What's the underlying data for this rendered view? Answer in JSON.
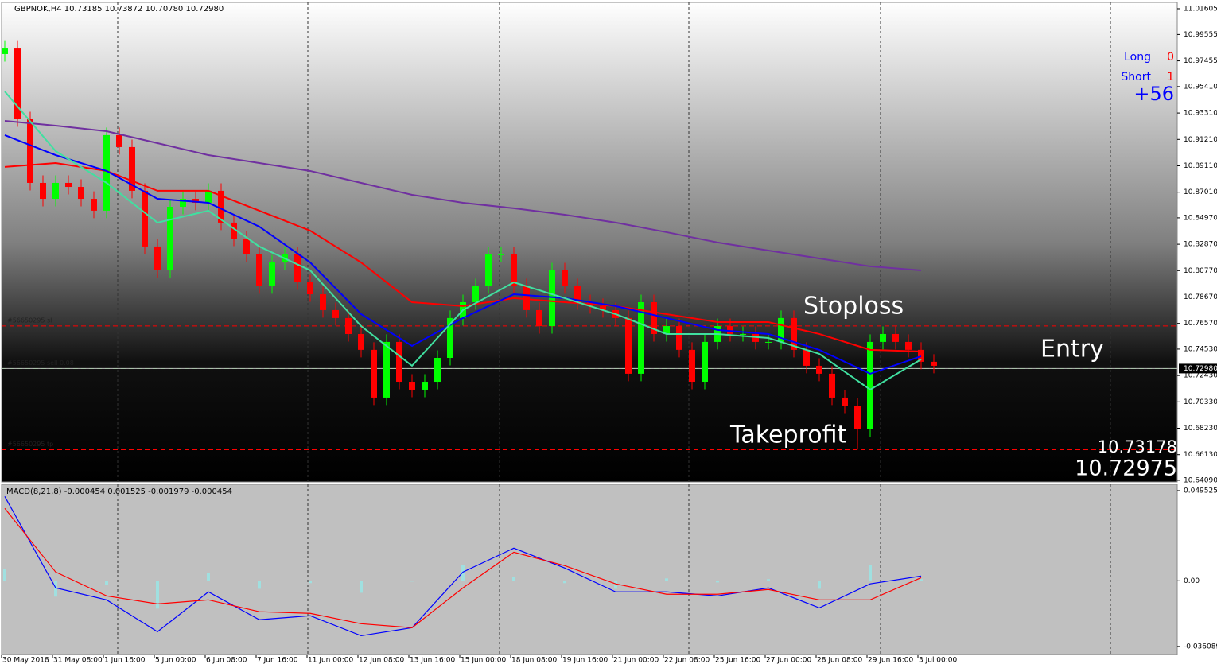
{
  "chart_data": {
    "type": "candlestick",
    "title": "GBPNOK,H4 10.73185 10.73872 10.70780 10.72980",
    "ylim": [
      10.6396,
      11.0211
    ],
    "yticks": [
      {
        "value": 11.01605,
        "label": "11.01605"
      },
      {
        "value": 10.99555,
        "label": "10.99555"
      },
      {
        "value": 10.97455,
        "label": "10.97455"
      },
      {
        "value": 10.9541,
        "label": "10.95410"
      },
      {
        "value": 10.9331,
        "label": "10.93310"
      },
      {
        "value": 10.9121,
        "label": "10.91210"
      },
      {
        "value": 10.8911,
        "label": "10.89110"
      },
      {
        "value": 10.8701,
        "label": "10.87010"
      },
      {
        "value": 10.8497,
        "label": "10.84970"
      },
      {
        "value": 10.8287,
        "label": "10.82870"
      },
      {
        "value": 10.8077,
        "label": "10.80770"
      },
      {
        "value": 10.7867,
        "label": "10.78670"
      },
      {
        "value": 10.7657,
        "label": "10.76570"
      },
      {
        "value": 10.7453,
        "label": "10.74530"
      },
      {
        "value": 10.7243,
        "label": "10.72430"
      },
      {
        "value": 10.7033,
        "label": "10.70330"
      },
      {
        "value": 10.6823,
        "label": "10.68230"
      },
      {
        "value": 10.6613,
        "label": "10.66130"
      },
      {
        "value": 10.6409,
        "label": "10.64090"
      }
    ],
    "current_price": {
      "value": 10.7298,
      "label": "10.72980"
    },
    "xtick_labels": [
      "30 May 2018",
      "31 May 08:00",
      "1 Jun 16:00",
      "5 Jun 00:00",
      "6 Jun 08:00",
      "7 Jun 16:00",
      "11 Jun 00:00",
      "12 Jun 08:00",
      "13 Jun 16:00",
      "15 Jun 00:00",
      "18 Jun 08:00",
      "19 Jun 16:00",
      "21 Jun 00:00",
      "22 Jun 08:00",
      "25 Jun 16:00",
      "27 Jun 00:00",
      "28 Jun 08:00",
      "29 Jun 16:00",
      "3 Jul 00:00"
    ],
    "open": [
      10.98,
      10.985,
      10.9281,
      10.8775,
      10.8648,
      10.8775,
      10.8743,
      10.8648,
      10.8554,
      10.9155,
      10.906,
      10.8712,
      10.8269,
      10.8079,
      10.8585,
      10.8648,
      10.8617,
      10.8712,
      10.8459,
      10.8332,
      10.8206,
      10.7953,
      10.8142,
      10.8206,
      10.7984,
      10.7889,
      10.7763,
      10.77,
      10.7573,
      10.7447,
      10.7067,
      10.751,
      10.7193,
      10.713,
      10.7193,
      10.7383,
      10.77,
      10.7826,
      10.7953,
      10.8206,
      10.8206,
      10.7953,
      10.7763,
      10.7636,
      10.8079,
      10.7953,
      10.7826,
      10.7795,
      10.7763,
      10.77,
      10.7257,
      10.7826,
      10.7573,
      10.7636,
      10.7447,
      10.7193,
      10.751,
      10.7636,
      10.7573,
      10.7573,
      10.751,
      10.751,
      10.77,
      10.7447,
      10.732,
      10.7257,
      10.7067,
      10.7003,
      10.6814,
      10.751,
      10.7573,
      10.751,
      10.7447,
      10.7352
    ],
    "high": [
      10.991,
      10.991,
      10.9341,
      10.8835,
      10.8835,
      10.8835,
      10.8803,
      10.8708,
      10.9215,
      10.9215,
      10.912,
      10.8772,
      10.8329,
      10.8645,
      10.8708,
      10.8708,
      10.8772,
      10.8772,
      10.8519,
      10.8392,
      10.8266,
      10.8202,
      10.8266,
      10.8266,
      10.8044,
      10.7949,
      10.7823,
      10.776,
      10.7633,
      10.7507,
      10.757,
      10.757,
      10.7253,
      10.7253,
      10.7443,
      10.776,
      10.7886,
      10.8013,
      10.8266,
      10.8266,
      10.8266,
      10.8013,
      10.7823,
      10.8139,
      10.8139,
      10.8013,
      10.7886,
      10.7855,
      10.7823,
      10.776,
      10.7886,
      10.7886,
      10.7696,
      10.7696,
      10.7507,
      10.757,
      10.7696,
      10.7696,
      10.7633,
      10.7633,
      10.757,
      10.776,
      10.776,
      10.7507,
      10.738,
      10.7317,
      10.7127,
      10.7063,
      10.757,
      10.7633,
      10.7633,
      10.757,
      10.7507,
      10.7412
    ],
    "low": [
      10.974,
      10.9221,
      10.8715,
      10.8588,
      10.8588,
      10.8683,
      10.8588,
      10.8494,
      10.8494,
      10.9,
      10.8652,
      10.8209,
      10.8019,
      10.8019,
      10.8525,
      10.8557,
      10.8557,
      10.8399,
      10.8272,
      10.8146,
      10.7893,
      10.7893,
      10.8082,
      10.7924,
      10.7829,
      10.7703,
      10.764,
      10.7513,
      10.7387,
      10.7007,
      10.7007,
      10.7133,
      10.707,
      10.707,
      10.7133,
      10.7323,
      10.764,
      10.7766,
      10.7893,
      10.8146,
      10.7893,
      10.7703,
      10.7576,
      10.7576,
      10.7893,
      10.7766,
      10.7735,
      10.7703,
      10.764,
      10.7197,
      10.7197,
      10.7513,
      10.7513,
      10.7387,
      10.7133,
      10.7133,
      10.745,
      10.7513,
      10.7513,
      10.745,
      10.745,
      10.745,
      10.7387,
      10.726,
      10.7197,
      10.7007,
      10.6943,
      10.6654,
      10.6754,
      10.745,
      10.745,
      10.7387,
      10.7292,
      10.726
    ],
    "close": [
      10.985,
      10.9281,
      10.8775,
      10.8648,
      10.8775,
      10.8743,
      10.8648,
      10.8554,
      10.9155,
      10.906,
      10.8712,
      10.8269,
      10.8079,
      10.8585,
      10.8648,
      10.8617,
      10.8712,
      10.8459,
      10.8332,
      10.8206,
      10.7953,
      10.8142,
      10.8206,
      10.7984,
      10.7889,
      10.7763,
      10.77,
      10.7573,
      10.7447,
      10.7067,
      10.751,
      10.7193,
      10.713,
      10.7193,
      10.7383,
      10.77,
      10.7826,
      10.7953,
      10.8206,
      10.8206,
      10.7953,
      10.7763,
      10.7636,
      10.8079,
      10.7953,
      10.7826,
      10.7795,
      10.7763,
      10.77,
      10.7257,
      10.7826,
      10.7573,
      10.7636,
      10.7447,
      10.7193,
      10.751,
      10.7636,
      10.7573,
      10.7573,
      10.751,
      10.751,
      10.77,
      10.7447,
      10.732,
      10.7257,
      10.7067,
      10.7003,
      10.6814,
      10.751,
      10.7573,
      10.751,
      10.7447,
      10.7352,
      10.732
    ],
    "up_color": "#00ff00",
    "down_color": "#ff0000",
    "series": [
      {
        "color": "#7030a0",
        "values": [
          10.9268,
          10.923,
          10.9186,
          10.9091,
          10.8996,
          10.8933,
          10.887,
          10.8775,
          10.868,
          10.8617,
          10.8573,
          10.8522,
          10.8459,
          10.8383,
          10.8301,
          10.8237,
          10.8174,
          10.8111,
          10.8079
        ]
      },
      {
        "color": "#ff0000",
        "values": [
          10.8902,
          10.8933,
          10.887,
          10.8712,
          10.8712,
          10.8554,
          10.8395,
          10.8142,
          10.7826,
          10.7795,
          10.7858,
          10.7826,
          10.7795,
          10.7731,
          10.7668,
          10.7668,
          10.7573,
          10.7447,
          10.7434
        ]
      },
      {
        "color": "#0000ff",
        "values": [
          10.9155,
          10.8996,
          10.887,
          10.8648,
          10.8617,
          10.8427,
          10.8142,
          10.7731,
          10.7478,
          10.77,
          10.7889,
          10.7858,
          10.7795,
          10.77,
          10.7605,
          10.7573,
          10.7447,
          10.7257,
          10.7396
        ]
      },
      {
        "color": "#40e0a0",
        "values": [
          10.9502,
          10.9028,
          10.8775,
          10.8459,
          10.8554,
          10.8269,
          10.8079,
          10.7636,
          10.732,
          10.7763,
          10.7984,
          10.7858,
          10.7731,
          10.7573,
          10.7573,
          10.7541,
          10.7415,
          10.713,
          10.7371
        ]
      }
    ],
    "orders": [
      {
        "label": "#56650295 sl",
        "price": 10.7637,
        "color": "#ff0000"
      },
      {
        "label": "#56650295 sell 0.08",
        "price": 10.72975,
        "color": "#00c000"
      },
      {
        "label": "#56650295 tp",
        "price": 10.6652,
        "color": "#ff0000"
      }
    ],
    "annotations": {
      "stoploss": "Stoploss",
      "entry": "Entry",
      "takeprofit": "Takeprofit",
      "line1": "10.73178",
      "line2": "10.72975"
    },
    "panel": {
      "long_label": "Long",
      "long_value": 0,
      "short_label": "Short",
      "short_value": 1,
      "profit": "+56"
    },
    "macd": {
      "title": "MACD(8,21,8) -0.000454 0.001525 -0.001979 -0.000454",
      "ylim": [
        -0.0405,
        0.053
      ],
      "yticks": [
        0.049525,
        {
          "value": 0,
          "label": "0.00"
        },
        -0.036089
      ],
      "main": {
        "color": "#0000ff",
        "values": [
          0.0463,
          -0.0039,
          -0.0105,
          -0.028,
          -0.0061,
          -0.0214,
          -0.0192,
          -0.0302,
          -0.0258,
          0.0048,
          0.0179,
          0.007,
          -0.0061,
          -0.0061,
          -0.0083,
          -0.0039,
          -0.0149,
          -0.0017,
          0.0026
        ]
      },
      "signal": {
        "color": "#ff0000",
        "values": [
          0.0398,
          0.0048,
          -0.0083,
          -0.0127,
          -0.0105,
          -0.017,
          -0.0179,
          -0.0236,
          -0.0258,
          -0.0039,
          0.0157,
          0.0083,
          -0.0017,
          -0.0074,
          -0.0074,
          -0.0048,
          -0.0105,
          -0.0105,
          0.0017
        ]
      },
      "histogram": {
        "color": "#a0e0e0",
        "values": [
          0.0065,
          -0.0087,
          -0.0022,
          -0.0153,
          0.0044,
          -0.0044,
          -0.0013,
          -0.0066,
          0,
          0.0087,
          0.0022,
          -0.0013,
          -0.0044,
          0.0013,
          -0.0009,
          0.0009,
          -0.0044,
          0.0088,
          0.0009
        ]
      }
    }
  }
}
